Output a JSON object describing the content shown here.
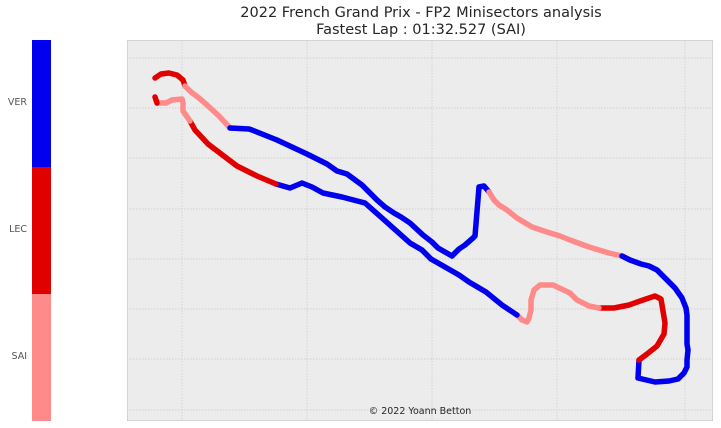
{
  "title_line1": "2022 French Grand Prix - FP2 Minisectors analysis",
  "title_line2": "Fastest Lap : 01:32.527 (SAI)",
  "credit": "© 2022 Yoann Betton",
  "colors": {
    "VER": "#0000ee",
    "LEC": "#e00000",
    "SAI": "#ff8a8a",
    "plot_bg": "#ececec",
    "grid": "#c8c8c8"
  },
  "chart_data": {
    "type": "line",
    "title": "2022 French Grand Prix - FP2 Minisectors analysis\nFastest Lap : 01:32.527 (SAI)",
    "grid": true,
    "legend": "colorbar-left",
    "categories": [
      "VER",
      "LEC",
      "SAI"
    ],
    "fastest_lap": "01:32.527",
    "fastest_driver": "SAI",
    "x_range": [
      0,
      586
    ],
    "y_range": [
      0,
      381
    ],
    "track_points": [
      [
        28,
        38
      ],
      [
        34,
        34
      ],
      [
        42,
        33
      ],
      [
        50,
        35
      ],
      [
        56,
        40
      ],
      [
        58,
        46
      ],
      [
        64,
        52
      ],
      [
        72,
        58
      ],
      [
        80,
        65
      ],
      [
        92,
        76
      ],
      [
        103,
        88
      ],
      [
        122,
        89
      ],
      [
        125,
        90
      ],
      [
        150,
        100
      ],
      [
        165,
        107
      ],
      [
        180,
        114
      ],
      [
        200,
        124
      ],
      [
        210,
        131
      ],
      [
        220,
        134
      ],
      [
        235,
        145
      ],
      [
        243,
        153
      ],
      [
        250,
        160
      ],
      [
        258,
        167
      ],
      [
        267,
        173
      ],
      [
        274,
        177
      ],
      [
        283,
        183
      ],
      [
        296,
        195
      ],
      [
        305,
        202
      ],
      [
        311,
        208
      ],
      [
        325,
        216
      ],
      [
        332,
        209
      ],
      [
        338,
        205
      ],
      [
        346,
        198
      ],
      [
        348,
        196
      ],
      [
        352,
        147
      ],
      [
        357,
        146
      ],
      [
        362,
        152
      ],
      [
        367,
        160
      ],
      [
        372,
        165
      ],
      [
        380,
        170
      ],
      [
        390,
        178
      ],
      [
        405,
        187
      ],
      [
        420,
        192
      ],
      [
        433,
        196
      ],
      [
        443,
        200
      ],
      [
        462,
        207
      ],
      [
        482,
        213
      ],
      [
        495,
        216
      ],
      [
        503,
        220
      ],
      [
        514,
        224
      ],
      [
        522,
        226
      ],
      [
        530,
        230
      ],
      [
        540,
        240
      ],
      [
        548,
        248
      ],
      [
        555,
        258
      ],
      [
        559,
        268
      ],
      [
        560,
        275
      ],
      [
        560,
        283
      ],
      [
        560,
        295
      ],
      [
        560,
        304
      ],
      [
        561,
        310
      ],
      [
        560,
        320
      ],
      [
        560,
        327
      ],
      [
        557,
        333
      ],
      [
        551,
        339
      ],
      [
        542,
        341
      ],
      [
        528,
        342
      ],
      [
        511,
        338
      ],
      [
        512,
        320
      ],
      [
        520,
        314
      ],
      [
        530,
        306
      ],
      [
        537,
        294
      ],
      [
        538,
        283
      ],
      [
        534,
        259
      ],
      [
        528,
        256
      ],
      [
        516,
        260
      ],
      [
        502,
        265
      ],
      [
        487,
        268
      ],
      [
        472,
        268
      ],
      [
        462,
        266
      ],
      [
        450,
        260
      ],
      [
        443,
        253
      ],
      [
        426,
        245
      ],
      [
        413,
        245
      ],
      [
        407,
        250
      ],
      [
        404,
        260
      ],
      [
        404,
        270
      ],
      [
        402,
        278
      ],
      [
        400,
        282
      ],
      [
        395,
        280
      ],
      [
        390,
        275
      ],
      [
        375,
        265
      ],
      [
        359,
        252
      ],
      [
        342,
        242
      ],
      [
        332,
        235
      ],
      [
        304,
        219
      ],
      [
        295,
        210
      ],
      [
        283,
        203
      ],
      [
        255,
        178
      ],
      [
        238,
        163
      ],
      [
        215,
        157
      ],
      [
        196,
        153
      ],
      [
        185,
        147
      ],
      [
        175,
        143
      ],
      [
        163,
        148
      ],
      [
        149,
        144
      ],
      [
        130,
        136
      ],
      [
        110,
        126
      ],
      [
        81,
        104
      ],
      [
        68,
        90
      ],
      [
        63,
        81
      ],
      [
        56,
        71
      ],
      [
        56,
        63
      ],
      [
        55,
        59
      ],
      [
        45,
        60
      ],
      [
        39,
        63
      ],
      [
        35,
        63
      ],
      [
        30,
        63
      ],
      [
        28,
        57
      ]
    ],
    "segments": [
      {
        "from": 0,
        "to": 5,
        "driver": "LEC"
      },
      {
        "from": 5,
        "to": 10,
        "driver": "SAI"
      },
      {
        "from": 10,
        "to": 36,
        "driver": "VER"
      },
      {
        "from": 36,
        "to": 47,
        "driver": "SAI"
      },
      {
        "from": 47,
        "to": 68,
        "driver": "VER"
      },
      {
        "from": 68,
        "to": 78,
        "driver": "LEC"
      },
      {
        "from": 78,
        "to": 90,
        "driver": "SAI"
      },
      {
        "from": 90,
        "to": 105,
        "driver": "VER"
      },
      {
        "from": 105,
        "to": 110,
        "driver": "LEC"
      },
      {
        "from": 110,
        "to": 117,
        "driver": "SAI"
      },
      {
        "from": 117,
        "to": 122,
        "driver": "LEC"
      },
      {
        "from": 122,
        "to": 124,
        "driver": "SAI"
      }
    ]
  }
}
